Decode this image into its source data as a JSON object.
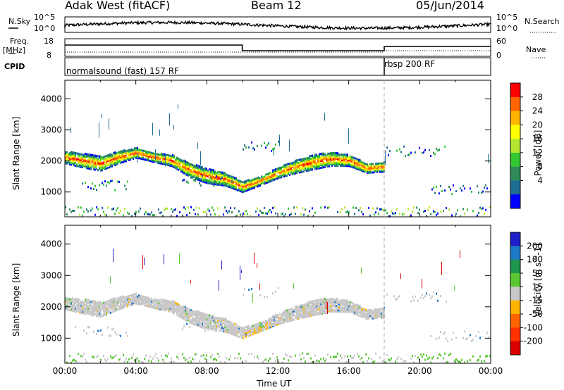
{
  "header": {
    "station": "Adak West (fitACF)",
    "beam": "Beam 12",
    "date": "05/Jun/2014"
  },
  "panels": {
    "nsky": {
      "label": "N.Sky",
      "ticks": [
        "10^5",
        "10^0"
      ]
    },
    "nsearch": {
      "label": "N.Search",
      "ticks": [
        "10^5",
        "10^0"
      ]
    },
    "freq": {
      "label": "Freq.",
      "unit": "[MHz]",
      "ticks": [
        "18",
        "8"
      ]
    },
    "nave": {
      "label": "Nave",
      "ticks": [
        "60",
        "0"
      ]
    },
    "cpid": {
      "label": "CPID",
      "program_1": "normalsound (fast) 157 RF",
      "program_2": "rbsp 200 RF"
    }
  },
  "chart_data": [
    {
      "type": "heatmap",
      "name": "power",
      "ylabel": "Slant Range [km]",
      "xlabel": "",
      "xlim": [
        0,
        24
      ],
      "ylim": [
        200,
        4600
      ],
      "x_ticks": [
        "00:00",
        "04:00",
        "08:00",
        "12:00",
        "16:00",
        "20:00",
        "00:00"
      ],
      "y_ticks": [
        "1000",
        "2000",
        "3000",
        "4000"
      ],
      "colorbar": {
        "label": "Power [dB]",
        "ticks": [
          "28",
          "24",
          "20",
          "16",
          "12",
          "8",
          "4"
        ],
        "colors": [
          "#ff0000",
          "#ff6400",
          "#ffb400",
          "#ffff00",
          "#b4e632",
          "#32c832",
          "#2e8b57",
          "#1e6e96",
          "#0000ff"
        ]
      },
      "echo_band": {
        "time_h": [
          0,
          1,
          2,
          3,
          4,
          5,
          6,
          7,
          8,
          9,
          10,
          11,
          12,
          13,
          14,
          15,
          16,
          17,
          18
        ],
        "range_km": [
          2150,
          2050,
          1950,
          2150,
          2300,
          2150,
          2050,
          1750,
          1550,
          1450,
          1200,
          1400,
          1650,
          1850,
          2000,
          2100,
          2050,
          1800,
          1850
        ]
      },
      "secondary_echoes": [
        {
          "time_h": [
            0.5,
            3.5
          ],
          "range_km": 1250
        },
        {
          "time_h": [
            6.5,
            9.5
          ],
          "range_km": 1400
        },
        {
          "time_h": [
            10,
            12
          ],
          "range_km": 2500
        },
        {
          "time_h": [
            18,
            21.5
          ],
          "range_km": 2350
        },
        {
          "time_h": [
            20.5,
            24
          ],
          "range_km": 1100
        }
      ]
    },
    {
      "type": "heatmap",
      "name": "velocity",
      "ylabel": "Slant Range [km]",
      "xlabel": "Time UT",
      "xlim": [
        0,
        24
      ],
      "ylim": [
        200,
        4600
      ],
      "x_ticks": [
        "00:00",
        "04:00",
        "08:00",
        "12:00",
        "16:00",
        "20:00",
        "00:00"
      ],
      "y_ticks": [
        "1000",
        "2000",
        "3000",
        "4000"
      ],
      "colorbar": {
        "label": "Velocity [m s^-1]",
        "ticks": [
          "200",
          "100",
          "50",
          "15",
          "-15",
          "-50",
          "-100",
          "-200"
        ],
        "colors": [
          "#1e1ec8",
          "#1e78c8",
          "#1e9650",
          "#5ac832",
          "#c8c8c8",
          "#ffb400",
          "#ff6400",
          "#ff3200",
          "#dc0000"
        ]
      }
    }
  ]
}
